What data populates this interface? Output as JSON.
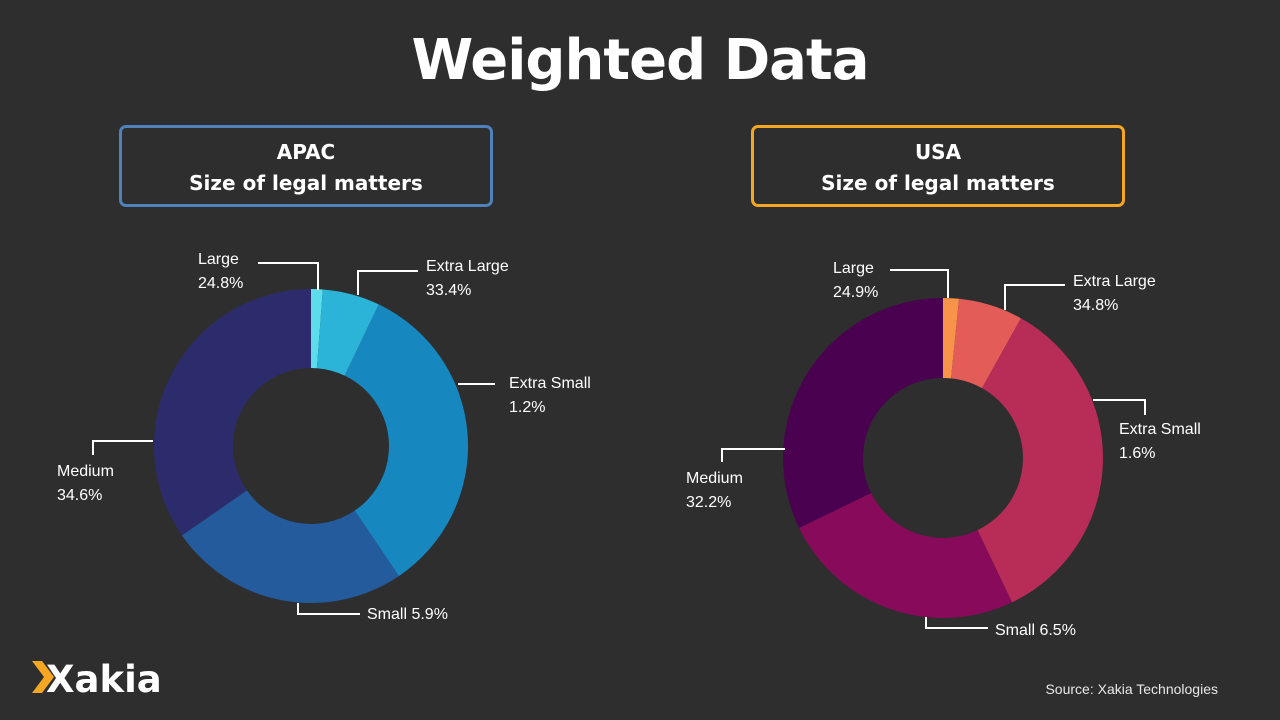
{
  "title": "Weighted Data",
  "source": "Source: Xakia Technologies",
  "logo_text": "Xakia",
  "chart_data": [
    {
      "type": "pie",
      "variant": "donut",
      "region": "APAC",
      "title": "Size of legal matters",
      "border_color": "#4f81bd",
      "slices": [
        {
          "value": 1.2,
          "color": "#5ddceb"
        },
        {
          "value": 5.9,
          "color": "#2bb3d8"
        },
        {
          "value": 33.4,
          "color": "#1788bf"
        },
        {
          "value": 24.8,
          "color": "#235b9c"
        },
        {
          "value": 34.6,
          "color": "#2c2c6c"
        }
      ],
      "labels": [
        {
          "name": "Large",
          "value": "24.8%"
        },
        {
          "name": "Extra Large",
          "value": "33.4%"
        },
        {
          "name": "Extra Small",
          "value": "1.2%"
        },
        {
          "name": "Medium",
          "value": "34.6%"
        },
        {
          "name": "Small",
          "value": "5.9%"
        }
      ]
    },
    {
      "type": "pie",
      "variant": "donut",
      "region": "USA",
      "title": "Size of legal matters",
      "border_color": "#f5a623",
      "slices": [
        {
          "value": 1.6,
          "color": "#f7944a"
        },
        {
          "value": 6.5,
          "color": "#e45c57"
        },
        {
          "value": 34.8,
          "color": "#b82d58"
        },
        {
          "value": 24.9,
          "color": "#880a5a"
        },
        {
          "value": 32.2,
          "color": "#4a0150"
        }
      ],
      "labels": [
        {
          "name": "Large",
          "value": "24.9%"
        },
        {
          "name": "Extra Large",
          "value": "34.8%"
        },
        {
          "name": "Extra Small",
          "value": "1.6%"
        },
        {
          "name": "Medium",
          "value": "32.2%"
        },
        {
          "name": "Small",
          "value": "6.5%"
        }
      ]
    }
  ]
}
